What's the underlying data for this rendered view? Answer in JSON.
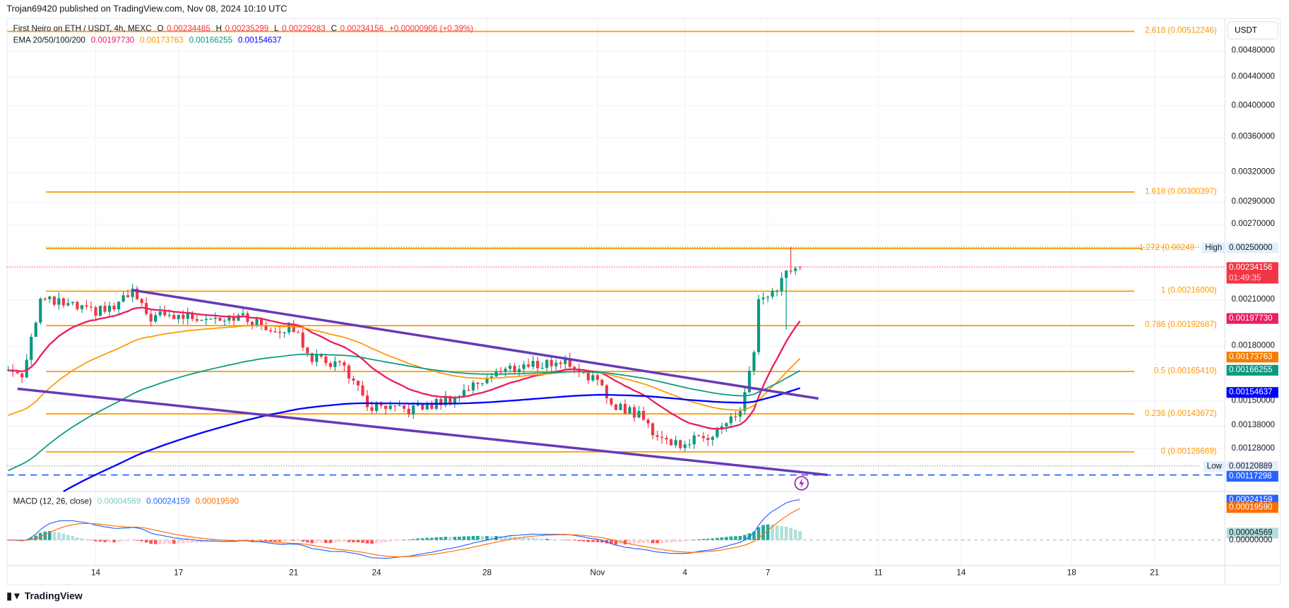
{
  "publish_line": "Trojan69420 published on TradingView.com, Nov 08, 2024 10:10 UTC",
  "legend": {
    "symbol": "First Neiro on ETH / USDT, 4h, MEXC",
    "o_label": "O",
    "o": "0.00234485",
    "h_label": "H",
    "h": "0.00235299",
    "l_label": "L",
    "l": "0.00229283",
    "c_label": "C",
    "c": "0.00234156",
    "change": "+0.00000906 (+0.39%)",
    "ema_label": "EMA 20/50/100/200",
    "ema20": "0.00197730",
    "ema50": "0.00173763",
    "ema100": "0.00166255",
    "ema200": "0.00154637",
    "macd_label": "MACD (12, 26, close)",
    "macd_hist": "0.00004569",
    "macd": "0.00024159",
    "macd_signal": "0.00019590"
  },
  "currency": "USDT",
  "colors": {
    "up": "#089981",
    "down": "#f23645",
    "ema20": "#e91e63",
    "ema50": "#ff9800",
    "ema100": "#089981",
    "ema200": "#0000ff",
    "fib": "#ff9800",
    "trend": "#673ab7",
    "macd": "#2962ff",
    "signal": "#ff6d00"
  },
  "price_axis": [
    {
      "label": "0.00480000",
      "v": 0.0048
    },
    {
      "label": "0.00440000",
      "v": 0.0044
    },
    {
      "label": "0.00400000",
      "v": 0.004
    },
    {
      "label": "0.00360000",
      "v": 0.0036
    },
    {
      "label": "0.00320000",
      "v": 0.0032
    },
    {
      "label": "0.00290000",
      "v": 0.0029
    },
    {
      "label": "0.00270000",
      "v": 0.0027
    },
    {
      "label": "0.00210000",
      "v": 0.0021
    },
    {
      "label": "0.00180000",
      "v": 0.0018
    },
    {
      "label": "0.00150000",
      "v": 0.0015
    },
    {
      "label": "0.00138000",
      "v": 0.00138
    },
    {
      "label": "0.00128000",
      "v": 0.00128
    }
  ],
  "fib_levels": [
    {
      "label": "2.618 (0.00512246)",
      "v": 0.00512246
    },
    {
      "label": "1.618 (0.00300397)",
      "v": 0.00300397
    },
    {
      "label": "1.272 (0.00249",
      "v": 0.00249
    },
    {
      "label": "1 (0.00216000)",
      "v": 0.00216
    },
    {
      "label": "0.786 (0.00192687)",
      "v": 0.00192687
    },
    {
      "label": "0.5 (0.00165410)",
      "v": 0.0016541
    },
    {
      "label": "0.236 (0.00143672)",
      "v": 0.00143672
    },
    {
      "label": "0 (0.00126669)",
      "v": 0.00126669
    }
  ],
  "high": {
    "label": "High",
    "value": "0.00250000",
    "v": 0.0025
  },
  "low": {
    "label": "Low",
    "value": "0.00120889",
    "v": 0.00120889
  },
  "dashed_level": {
    "value": "0.00117298",
    "v": 0.00117298
  },
  "price_tags": [
    {
      "text": "0.00234156",
      "sub": "01:49:35",
      "v": 0.00234156,
      "bg": "#f23645",
      "fg": "#ffffff"
    },
    {
      "text": "0.00197730",
      "v": 0.0019773,
      "bg": "#e91e63",
      "fg": "#ffffff"
    },
    {
      "text": "0.00173763",
      "v": 0.00173763,
      "bg": "#f57c00",
      "fg": "#ffffff"
    },
    {
      "text": "0.00166255",
      "v": 0.00166255,
      "bg": "#089981",
      "fg": "#ffffff"
    },
    {
      "text": "0.00154637",
      "v": 0.00154637,
      "bg": "#0000ff",
      "fg": "#ffffff"
    }
  ],
  "macd_axis": [
    {
      "text": "0.00024159",
      "bg": "#2962ff",
      "fg": "#ffffff",
      "v": 0.00024159
    },
    {
      "text": "0.00019590",
      "bg": "#ff6d00",
      "fg": "#ffffff",
      "v": 0.0001959
    },
    {
      "text": "0.00004569",
      "bg": "#b2dfdb",
      "fg": "#131722",
      "v": 4.569e-05
    },
    {
      "text": "0.00000000",
      "bg": "transparent",
      "fg": "#131722",
      "v": 0
    }
  ],
  "time_axis": [
    {
      "label": "14",
      "idx": 19
    },
    {
      "label": "17",
      "idx": 37
    },
    {
      "label": "21",
      "idx": 62
    },
    {
      "label": "24",
      "idx": 80
    },
    {
      "label": "28",
      "idx": 104
    },
    {
      "label": "Nov",
      "idx": 128
    },
    {
      "label": "4",
      "idx": 147
    },
    {
      "label": "7",
      "idx": 165
    },
    {
      "label": "11",
      "idx": 189
    },
    {
      "label": "14",
      "idx": 207
    },
    {
      "label": "18",
      "idx": 231
    },
    {
      "label": "21",
      "idx": 249
    }
  ],
  "chart_data": {
    "type": "candlestick",
    "title": "First Neiro on ETH / USDT, 4h, MEXC",
    "scale": "log",
    "close_anchors": [
      [
        0,
        0.001663
      ],
      [
        3,
        0.001641
      ],
      [
        7,
        0.002098
      ],
      [
        12,
        0.002069
      ],
      [
        18,
        0.002014
      ],
      [
        23,
        0.002041
      ],
      [
        27,
        0.002156
      ],
      [
        30,
        0.001986
      ],
      [
        34,
        0.001986
      ],
      [
        41,
        0.001986
      ],
      [
        50,
        0.001986
      ],
      [
        57,
        0.001907
      ],
      [
        62,
        0.001907
      ],
      [
        66,
        0.001733
      ],
      [
        73,
        0.001686
      ],
      [
        78,
        0.001471
      ],
      [
        84,
        0.001451
      ],
      [
        91,
        0.001471
      ],
      [
        98,
        0.001533
      ],
      [
        105,
        0.001641
      ],
      [
        112,
        0.001686
      ],
      [
        121,
        0.00171
      ],
      [
        127,
        0.001619
      ],
      [
        131,
        0.001491
      ],
      [
        137,
        0.001431
      ],
      [
        141,
        0.001337
      ],
      [
        145,
        0.001301
      ],
      [
        150,
        0.001319
      ],
      [
        155,
        0.001374
      ],
      [
        159,
        0.001451
      ],
      [
        162,
        0.001757
      ],
      [
        163,
        0.002069
      ],
      [
        166,
        0.002127
      ],
      [
        169,
        0.002308
      ],
      [
        172,
        0.00234156
      ]
    ],
    "ema_seed": {
      "ema20": 0.00166,
      "ema50": 0.00142,
      "ema100": 0.00118,
      "ema200": 0.001
    },
    "trendlines": [
      {
        "name": "upper",
        "points": [
          [
            27,
            0.002168
          ],
          [
            176,
            0.001512
          ]
        ]
      },
      {
        "name": "lower",
        "points": [
          [
            2,
            0.001562
          ],
          [
            178,
            0.001173
          ]
        ]
      }
    ]
  },
  "footer": {
    "logo": "TradingView"
  }
}
